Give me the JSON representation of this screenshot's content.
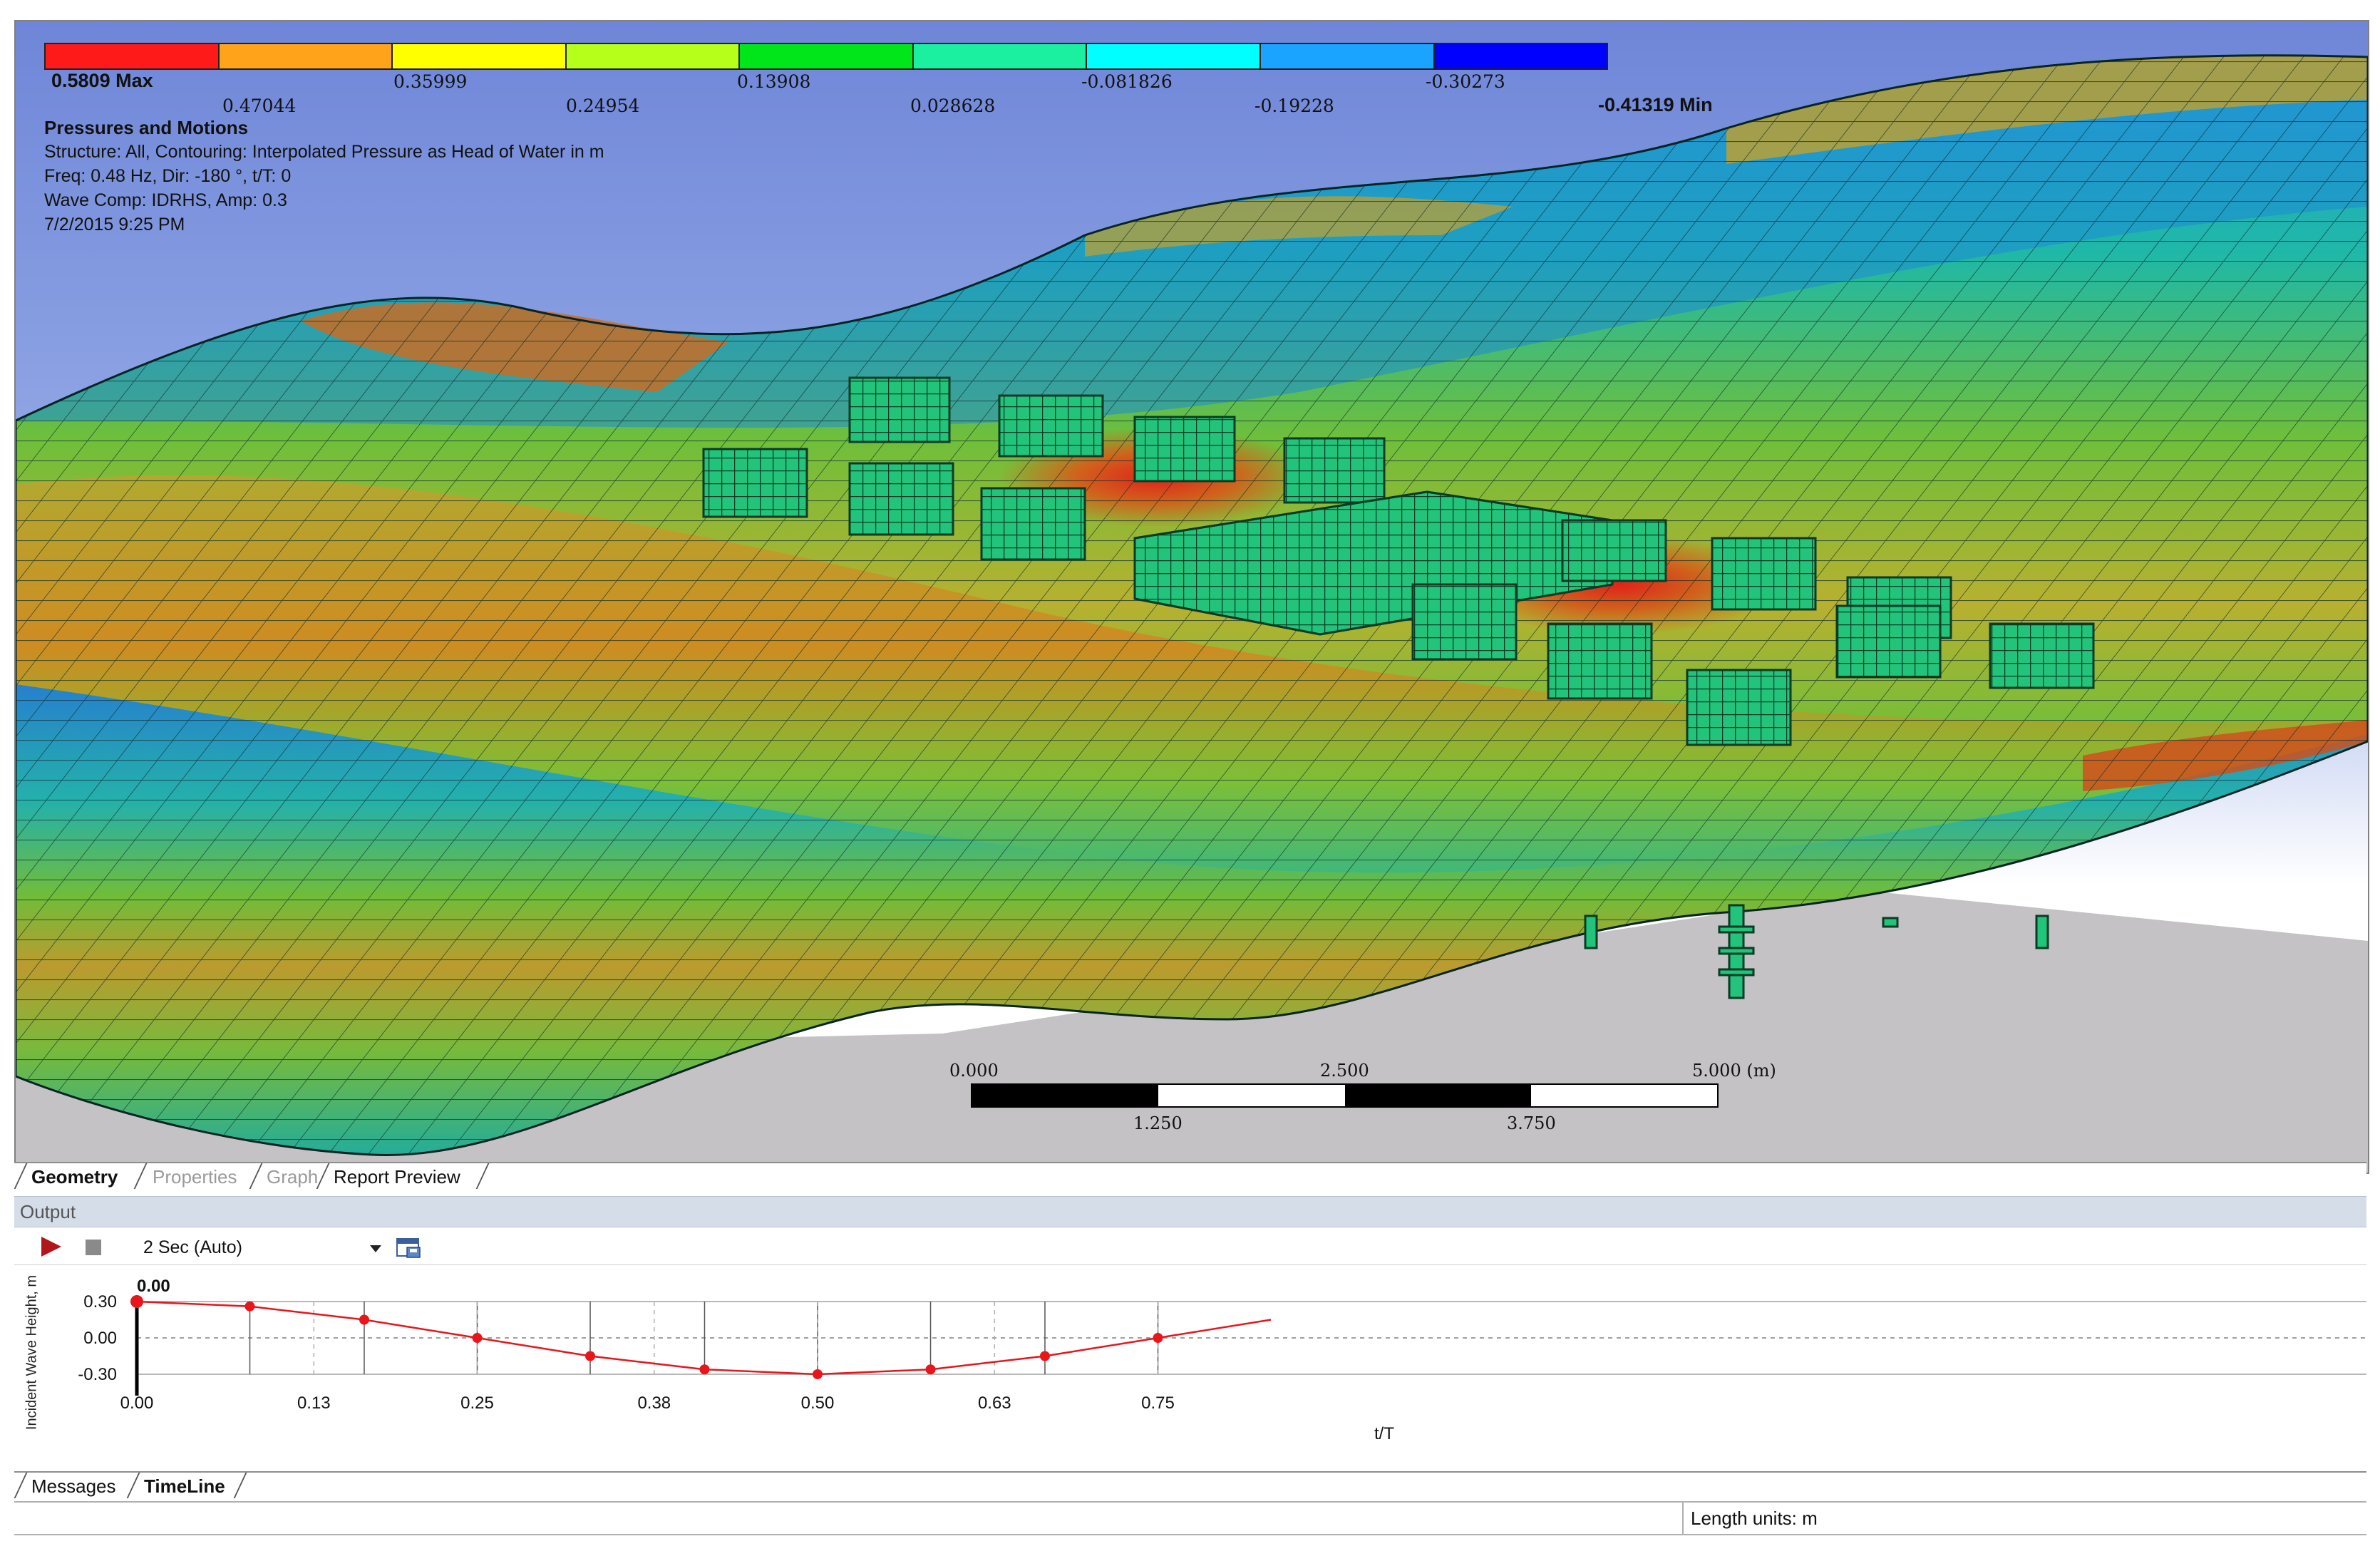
{
  "legend": {
    "max_label": "0.5809 Max",
    "min_label": "-0.41319 Min",
    "upper_values": [
      "0.35999",
      "0.13908",
      "-0.081826",
      "-0.30273"
    ],
    "lower_values": [
      "0.47044",
      "0.24954",
      "0.028628",
      "-0.19228"
    ],
    "colors": [
      "#ff1a1a",
      "#ffa31a",
      "#ffff00",
      "#b5ff1a",
      "#00e61a",
      "#1af0a0",
      "#00ffff",
      "#1aa3ff",
      "#0000ff"
    ]
  },
  "info": {
    "title": "Pressures and Motions",
    "structure": "Structure: All, Contouring: Interpolated Pressure as Head of Water in m",
    "freq": "Freq: 0.48 Hz, Dir: -180 °, t/T: 0",
    "wave": "Wave Comp: IDRHS, Amp: 0.3",
    "date": "7/2/2015 9:25 PM"
  },
  "scale": {
    "top": [
      "0.000",
      "2.500",
      "5.000 (m)"
    ],
    "bottom": [
      "1.250",
      "3.750"
    ]
  },
  "view_tabs": [
    {
      "label": "Geometry",
      "state": "active"
    },
    {
      "label": "Properties",
      "state": "inactive"
    },
    {
      "label": "Graph",
      "state": "inactive"
    },
    {
      "label": "Report Preview",
      "state": "normal"
    }
  ],
  "output": {
    "title": "Output",
    "speed": "2 Sec (Auto)"
  },
  "chart_data": {
    "type": "line",
    "title": "",
    "current_value": "0.00",
    "xlabel": "t/T",
    "ylabel": "Incident Wave Height, m",
    "y_ticks": [
      "0.30",
      "0.00",
      "-0.30"
    ],
    "x_ticks": [
      "0.00",
      "0.13",
      "0.25",
      "0.38",
      "0.50",
      "0.63",
      "0.75"
    ],
    "ylim": [
      -0.3,
      0.3
    ],
    "xlim": [
      0,
      0.82
    ],
    "grid": true,
    "series": [
      {
        "x": [
          0.0,
          0.083,
          0.167,
          0.25,
          0.333,
          0.417,
          0.5,
          0.583,
          0.667,
          0.75,
          0.833
        ],
        "values": [
          0.3,
          0.26,
          0.15,
          0.0,
          -0.15,
          -0.26,
          -0.3,
          -0.26,
          -0.15,
          0.0,
          0.15
        ],
        "color": "#e8151b"
      }
    ]
  },
  "bottom_tabs": [
    {
      "label": "Messages",
      "state": "normal"
    },
    {
      "label": "TimeLine",
      "state": "active"
    }
  ],
  "status": {
    "units": "Length units: m"
  }
}
